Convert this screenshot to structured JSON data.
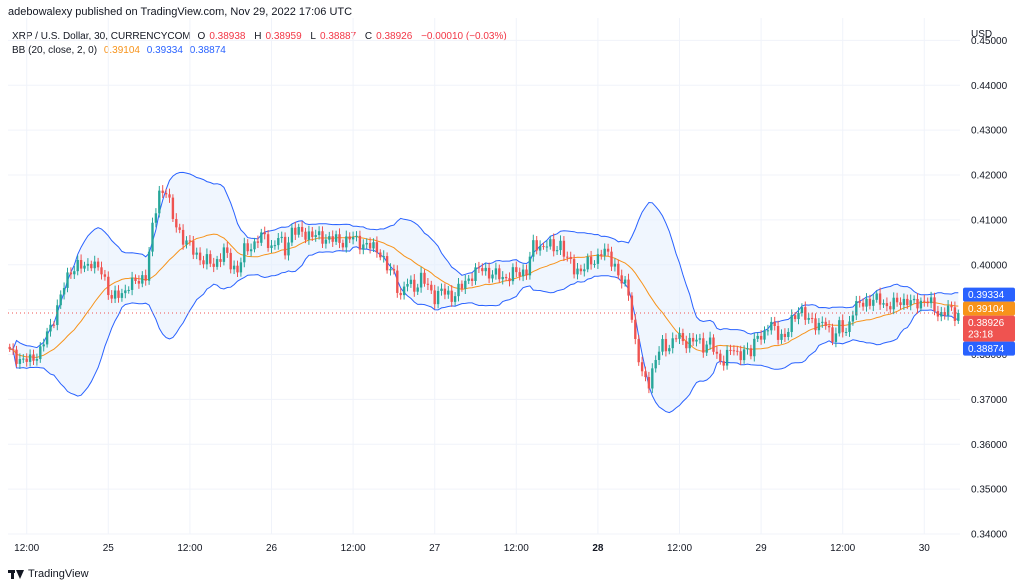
{
  "header": {
    "publisher": "adebowalexy published on TradingView.com, Nov 29, 2022 17:06 UTC"
  },
  "legend": {
    "symbol": "XRP / U.S. Dollar, 30, CURRENCYCOM",
    "o_label": "O",
    "o_value": "0.38938",
    "h_label": "H",
    "h_value": "0.38959",
    "l_label": "L",
    "l_value": "0.38887",
    "c_label": "C",
    "c_value": "0.38926",
    "change": "−0.00010 (−0.03%)",
    "bb_name": "BB (20, close, 2, 0)",
    "bb_basis": "0.39104",
    "bb_upper": "0.39334",
    "bb_lower": "0.38874"
  },
  "footer": {
    "brand": "TradingView"
  },
  "colors": {
    "up": "#26a69a",
    "down": "#ef5350",
    "basis": "#f7931a",
    "band": "#2962ff",
    "band_fill": "#e3effd",
    "grid": "#f0f3fa",
    "axis_text": "#131722"
  },
  "chart_data": {
    "type": "candlestick",
    "currency_label": "USD",
    "ylim": [
      0.34,
      0.455
    ],
    "y_ticks": [
      "0.45000",
      "0.44000",
      "0.43000",
      "0.42000",
      "0.41000",
      "0.40000",
      "0.39000",
      "0.38000",
      "0.37000",
      "0.36000",
      "0.35000",
      "0.34000"
    ],
    "x_ticks": [
      {
        "label": "12:00",
        "bar": 5
      },
      {
        "label": "25",
        "bar": 29
      },
      {
        "label": "12:00",
        "bar": 53
      },
      {
        "label": "26",
        "bar": 77
      },
      {
        "label": "12:00",
        "bar": 101
      },
      {
        "label": "27",
        "bar": 125
      },
      {
        "label": "12:00",
        "bar": 149
      },
      {
        "label": "28",
        "bar": 173
      },
      {
        "label": "12:00",
        "bar": 197
      },
      {
        "label": "29",
        "bar": 221
      },
      {
        "label": "12:00",
        "bar": 245
      },
      {
        "label": "30",
        "bar": 269
      }
    ],
    "bar_count": 280,
    "last_price": 0.38926,
    "price_labels": [
      {
        "value": "0.39334",
        "price": 0.39334,
        "color": "#2962ff"
      },
      {
        "value": "0.39104",
        "price": 0.39104,
        "color": "#f7931a"
      },
      {
        "value": "0.38926",
        "price": 0.38926,
        "color": "#ef5350",
        "sub": "23:18"
      },
      {
        "value": "0.38874",
        "price": 0.38874,
        "color": "#2962ff"
      }
    ],
    "close_path": [
      [
        0,
        0.3805
      ],
      [
        3,
        0.379
      ],
      [
        6,
        0.3785
      ],
      [
        9,
        0.381
      ],
      [
        12,
        0.386
      ],
      [
        15,
        0.393
      ],
      [
        18,
        0.399
      ],
      [
        20,
        0.4
      ],
      [
        22,
        0.399
      ],
      [
        24,
        0.401
      ],
      [
        27,
        0.398
      ],
      [
        30,
        0.393
      ],
      [
        33,
        0.393
      ],
      [
        35,
        0.396
      ],
      [
        38,
        0.396
      ],
      [
        40,
        0.398
      ],
      [
        42,
        0.408
      ],
      [
        44,
        0.416
      ],
      [
        46,
        0.417
      ],
      [
        48,
        0.41
      ],
      [
        51,
        0.406
      ],
      [
        54,
        0.403
      ],
      [
        57,
        0.401
      ],
      [
        60,
        0.4
      ],
      [
        63,
        0.403
      ],
      [
        65,
        0.4
      ],
      [
        67,
        0.399
      ],
      [
        69,
        0.403
      ],
      [
        71,
        0.404
      ],
      [
        73,
        0.406
      ],
      [
        75,
        0.406
      ],
      [
        77,
        0.404
      ],
      [
        79,
        0.406
      ],
      [
        81,
        0.403
      ],
      [
        83,
        0.408
      ],
      [
        85,
        0.407
      ],
      [
        88,
        0.407
      ],
      [
        91,
        0.406
      ],
      [
        94,
        0.406
      ],
      [
        97,
        0.405
      ],
      [
        100,
        0.406
      ],
      [
        103,
        0.405
      ],
      [
        106,
        0.404
      ],
      [
        109,
        0.403
      ],
      [
        111,
        0.399
      ],
      [
        113,
        0.398
      ],
      [
        115,
        0.393
      ],
      [
        117,
        0.396
      ],
      [
        119,
        0.395
      ],
      [
        121,
        0.397
      ],
      [
        123,
        0.395
      ],
      [
        125,
        0.393
      ],
      [
        127,
        0.394
      ],
      [
        130,
        0.393
      ],
      [
        133,
        0.395
      ],
      [
        136,
        0.398
      ],
      [
        139,
        0.399
      ],
      [
        142,
        0.398
      ],
      [
        145,
        0.397
      ],
      [
        148,
        0.398
      ],
      [
        150,
        0.398
      ],
      [
        152,
        0.399
      ],
      [
        154,
        0.404
      ],
      [
        156,
        0.404
      ],
      [
        158,
        0.405
      ],
      [
        160,
        0.403
      ],
      [
        162,
        0.405
      ],
      [
        164,
        0.401
      ],
      [
        166,
        0.399
      ],
      [
        168,
        0.399
      ],
      [
        170,
        0.4
      ],
      [
        172,
        0.401
      ],
      [
        174,
        0.403
      ],
      [
        176,
        0.402
      ],
      [
        178,
        0.4
      ],
      [
        180,
        0.396
      ],
      [
        182,
        0.394
      ],
      [
        184,
        0.383
      ],
      [
        186,
        0.375
      ],
      [
        188,
        0.374
      ],
      [
        190,
        0.379
      ],
      [
        192,
        0.382
      ],
      [
        194,
        0.382
      ],
      [
        196,
        0.384
      ],
      [
        198,
        0.383
      ],
      [
        200,
        0.383
      ],
      [
        202,
        0.383
      ],
      [
        204,
        0.382
      ],
      [
        206,
        0.383
      ],
      [
        208,
        0.379
      ],
      [
        210,
        0.379
      ],
      [
        212,
        0.381
      ],
      [
        214,
        0.38
      ],
      [
        216,
        0.381
      ],
      [
        218,
        0.38
      ],
      [
        220,
        0.385
      ],
      [
        222,
        0.384
      ],
      [
        224,
        0.387
      ],
      [
        226,
        0.385
      ],
      [
        228,
        0.383
      ],
      [
        230,
        0.388
      ],
      [
        232,
        0.39
      ],
      [
        234,
        0.388
      ],
      [
        236,
        0.388
      ],
      [
        238,
        0.386
      ],
      [
        240,
        0.387
      ],
      [
        242,
        0.384
      ],
      [
        244,
        0.386
      ],
      [
        246,
        0.385
      ],
      [
        248,
        0.39
      ],
      [
        250,
        0.391
      ],
      [
        252,
        0.392
      ],
      [
        254,
        0.392
      ],
      [
        256,
        0.392
      ],
      [
        258,
        0.391
      ],
      [
        260,
        0.391
      ],
      [
        262,
        0.392
      ],
      [
        264,
        0.392
      ],
      [
        266,
        0.391
      ],
      [
        268,
        0.392
      ],
      [
        270,
        0.392
      ],
      [
        272,
        0.39
      ],
      [
        274,
        0.389
      ],
      [
        276,
        0.39
      ],
      [
        278,
        0.389
      ],
      [
        279,
        0.3893
      ]
    ]
  }
}
